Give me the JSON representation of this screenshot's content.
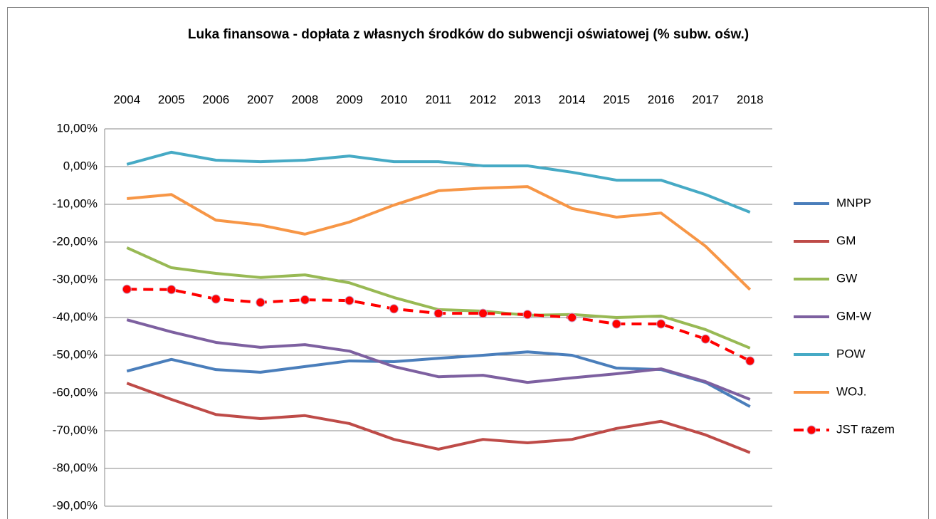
{
  "chart_data": {
    "type": "line",
    "title": "Luka finansowa - dopłata z własnych środków do subwencji oświatowej (% subw. ośw.)",
    "categories": [
      "2004",
      "2005",
      "2006",
      "2007",
      "2008",
      "2009",
      "2010",
      "2011",
      "2012",
      "2013",
      "2014",
      "2015",
      "2016",
      "2017",
      "2018"
    ],
    "ylim": [
      -90,
      10
    ],
    "yticks": [
      {
        "value": -90,
        "label": "-90,00%"
      },
      {
        "value": -80,
        "label": "-80,00%"
      },
      {
        "value": -70,
        "label": "-70,00%"
      },
      {
        "value": -60,
        "label": "-60,00%"
      },
      {
        "value": -50,
        "label": "-50,00%"
      },
      {
        "value": -40,
        "label": "-40,00%"
      },
      {
        "value": -30,
        "label": "-30,00%"
      },
      {
        "value": -20,
        "label": "-20,00%"
      },
      {
        "value": -10,
        "label": "-10,00%"
      },
      {
        "value": 0,
        "label": "0,00%"
      },
      {
        "value": 10,
        "label": "10,00%"
      }
    ],
    "grid": true,
    "legend": "right",
    "series": [
      {
        "name": "MNPP",
        "color": "#4a7ebb",
        "values": [
          -54.2,
          -51.1,
          -53.8,
          -54.5,
          -53,
          -51.5,
          -51.7,
          -50.8,
          -50,
          -49.1,
          -50,
          -53.4,
          -53.8,
          -57.2,
          -63.6
        ]
      },
      {
        "name": "GM",
        "color": "#be4b48",
        "values": [
          -57.4,
          -61.7,
          -65.7,
          -66.8,
          -66,
          -68.1,
          -72.3,
          -74.9,
          -72.3,
          -73.2,
          -72.3,
          -69.4,
          -67.5,
          -71.1,
          -75.8
        ]
      },
      {
        "name": "GW",
        "color": "#98b954",
        "values": [
          -21.5,
          -26.8,
          -28.3,
          -29.4,
          -28.7,
          -30.8,
          -34.7,
          -37.9,
          -38.3,
          -39.4,
          -39.2,
          -40,
          -39.6,
          -43.2,
          -48.1
        ]
      },
      {
        "name": "GM-W",
        "color": "#7d60a0",
        "values": [
          -40.6,
          -43.8,
          -46.6,
          -47.9,
          -47.2,
          -48.9,
          -53,
          -55.7,
          -55.3,
          -57.2,
          -56,
          -54.9,
          -53.6,
          -57,
          -61.7
        ]
      },
      {
        "name": "POW",
        "color": "#46aac5",
        "values": [
          0.6,
          3.8,
          1.7,
          1.3,
          1.7,
          2.8,
          1.3,
          1.3,
          0.2,
          0.2,
          -1.5,
          -3.6,
          -3.6,
          -7.4,
          -12.1
        ]
      },
      {
        "name": "WOJ.",
        "color": "#f79646",
        "values": [
          -8.5,
          -7.4,
          -14.2,
          -15.5,
          -17.9,
          -14.7,
          -10.2,
          -6.4,
          -5.7,
          -5.3,
          -11.1,
          -13.4,
          -12.3,
          -21.1,
          -32.6
        ]
      },
      {
        "name": "JST razem",
        "color": "#ff0000",
        "dashed": true,
        "markers": true,
        "values": [
          -32.5,
          -32.6,
          -35.1,
          -36,
          -35.3,
          -35.5,
          -37.7,
          -38.9,
          -38.9,
          -39.2,
          -40,
          -41.7,
          -41.7,
          -45.7,
          -51.5
        ]
      }
    ]
  }
}
